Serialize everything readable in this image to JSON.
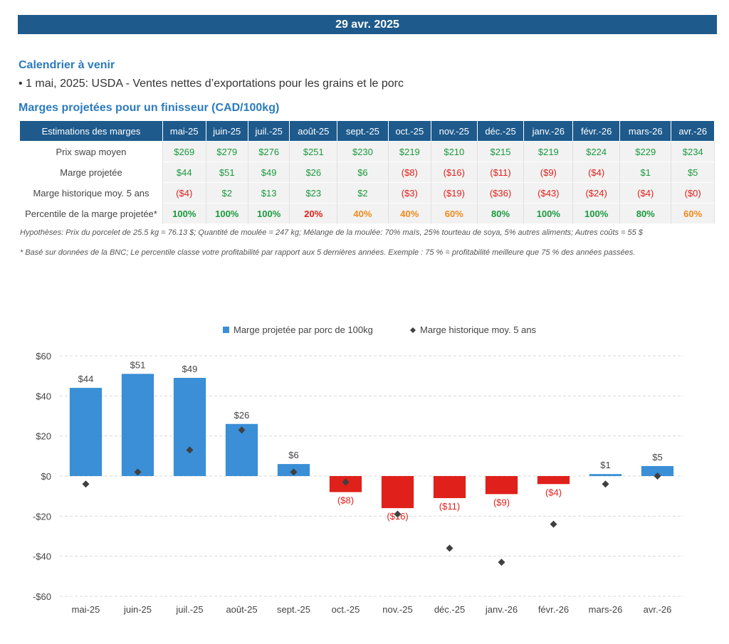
{
  "header": {
    "date": "29 avr. 2025"
  },
  "calendar": {
    "title": "Calendrier à venir",
    "event": "• 1 mai, 2025: USDA - Ventes nettes d’exportations pour les grains et le porc"
  },
  "margins": {
    "title": "Marges projetées pour un finisseur (CAD/100kg)",
    "header_label": "Estimations des marges",
    "months": [
      "mai-25",
      "juin-25",
      "juil.-25",
      "août-25",
      "sept.-25",
      "oct.-25",
      "nov.-25",
      "déc.-25",
      "janv.-26",
      "févr.-26",
      "mars-26",
      "avr.-26"
    ],
    "rows": [
      {
        "label": "Prix swap moyen",
        "cells": [
          {
            "t": "$269",
            "c": "pos"
          },
          {
            "t": "$279",
            "c": "pos"
          },
          {
            "t": "$276",
            "c": "pos"
          },
          {
            "t": "$251",
            "c": "pos"
          },
          {
            "t": "$230",
            "c": "pos"
          },
          {
            "t": "$219",
            "c": "pos"
          },
          {
            "t": "$210",
            "c": "pos"
          },
          {
            "t": "$215",
            "c": "pos"
          },
          {
            "t": "$219",
            "c": "pos"
          },
          {
            "t": "$224",
            "c": "pos"
          },
          {
            "t": "$229",
            "c": "pos"
          },
          {
            "t": "$234",
            "c": "pos"
          }
        ]
      },
      {
        "label": "Marge projetée",
        "cells": [
          {
            "t": "$44",
            "c": "pos"
          },
          {
            "t": "$51",
            "c": "pos"
          },
          {
            "t": "$49",
            "c": "pos"
          },
          {
            "t": "$26",
            "c": "pos"
          },
          {
            "t": "$6",
            "c": "pos"
          },
          {
            "t": "($8)",
            "c": "neg"
          },
          {
            "t": "($16)",
            "c": "neg"
          },
          {
            "t": "($11)",
            "c": "neg"
          },
          {
            "t": "($9)",
            "c": "neg"
          },
          {
            "t": "($4)",
            "c": "neg"
          },
          {
            "t": "$1",
            "c": "pos"
          },
          {
            "t": "$5",
            "c": "pos"
          }
        ]
      },
      {
        "label": "Marge historique moy. 5 ans",
        "cells": [
          {
            "t": "($4)",
            "c": "neg"
          },
          {
            "t": "$2",
            "c": "pos"
          },
          {
            "t": "$13",
            "c": "pos"
          },
          {
            "t": "$23",
            "c": "pos"
          },
          {
            "t": "$2",
            "c": "pos"
          },
          {
            "t": "($3)",
            "c": "neg"
          },
          {
            "t": "($19)",
            "c": "neg"
          },
          {
            "t": "($36)",
            "c": "neg"
          },
          {
            "t": "($43)",
            "c": "neg"
          },
          {
            "t": "($24)",
            "c": "neg"
          },
          {
            "t": "($4)",
            "c": "neg"
          },
          {
            "t": "($0)",
            "c": "neg"
          }
        ]
      },
      {
        "label": "Percentile de la marge projetée*",
        "cells": [
          {
            "t": "100%",
            "c": "p-green"
          },
          {
            "t": "100%",
            "c": "p-green"
          },
          {
            "t": "100%",
            "c": "p-green"
          },
          {
            "t": "20%",
            "c": "p-red"
          },
          {
            "t": "40%",
            "c": "p-orange"
          },
          {
            "t": "40%",
            "c": "p-orange"
          },
          {
            "t": "60%",
            "c": "p-orange"
          },
          {
            "t": "80%",
            "c": "p-green"
          },
          {
            "t": "100%",
            "c": "p-green"
          },
          {
            "t": "100%",
            "c": "p-green"
          },
          {
            "t": "80%",
            "c": "p-green"
          },
          {
            "t": "60%",
            "c": "p-orange"
          }
        ]
      }
    ],
    "note1": "Hypothèses: Prix du porcelet de 25.5 kg = 76.13 $; Quantité de moulée = 247 kg; Mélange de la moulée: 70% maïs, 25% tourteau de soya, 5% autres aliments; Autres coûts = 55 $",
    "note2": "* Basé sur données de la BNC; Le percentile classe votre profitabilité par rapport aux 5 dernières années. Exemple : 75 % = profitabilité meilleure que 75 % des années passées."
  },
  "colors": {
    "header_bg": "#1e5a8c",
    "bar_positive": "#3a8fd6",
    "bar_negative": "#e0201b",
    "marker": "#404040",
    "grid": "#d9d9d9"
  },
  "chart_data": {
    "type": "bar",
    "categories": [
      "mai-25",
      "juin-25",
      "juil.-25",
      "août-25",
      "sept.-25",
      "oct.-25",
      "nov.-25",
      "déc.-25",
      "janv.-26",
      "févr.-26",
      "mars-26",
      "avr.-26"
    ],
    "series": [
      {
        "name": "Marge projetée par porc de 100kg",
        "kind": "bar",
        "values": [
          44,
          51,
          49,
          26,
          6,
          -8,
          -16,
          -11,
          -9,
          -4,
          1,
          5
        ],
        "labels": [
          "$44",
          "$51",
          "$49",
          "$26",
          "$6",
          "($8)",
          "($16)",
          "($11)",
          "($9)",
          "($4)",
          "$1",
          "$5"
        ]
      },
      {
        "name": "Marge historique moy. 5 ans",
        "kind": "marker",
        "values": [
          -4,
          2,
          13,
          23,
          2,
          -3,
          -19,
          -36,
          -43,
          -24,
          -4,
          0
        ]
      }
    ],
    "ylim": [
      -60,
      60
    ],
    "yticks": [
      60,
      40,
      20,
      0,
      -20,
      -40,
      -60
    ],
    "ytick_labels": [
      "$60",
      "$40",
      "$20",
      "$0",
      "-$20",
      "-$40",
      "-$60"
    ],
    "grid": true,
    "legend": "top-center"
  }
}
